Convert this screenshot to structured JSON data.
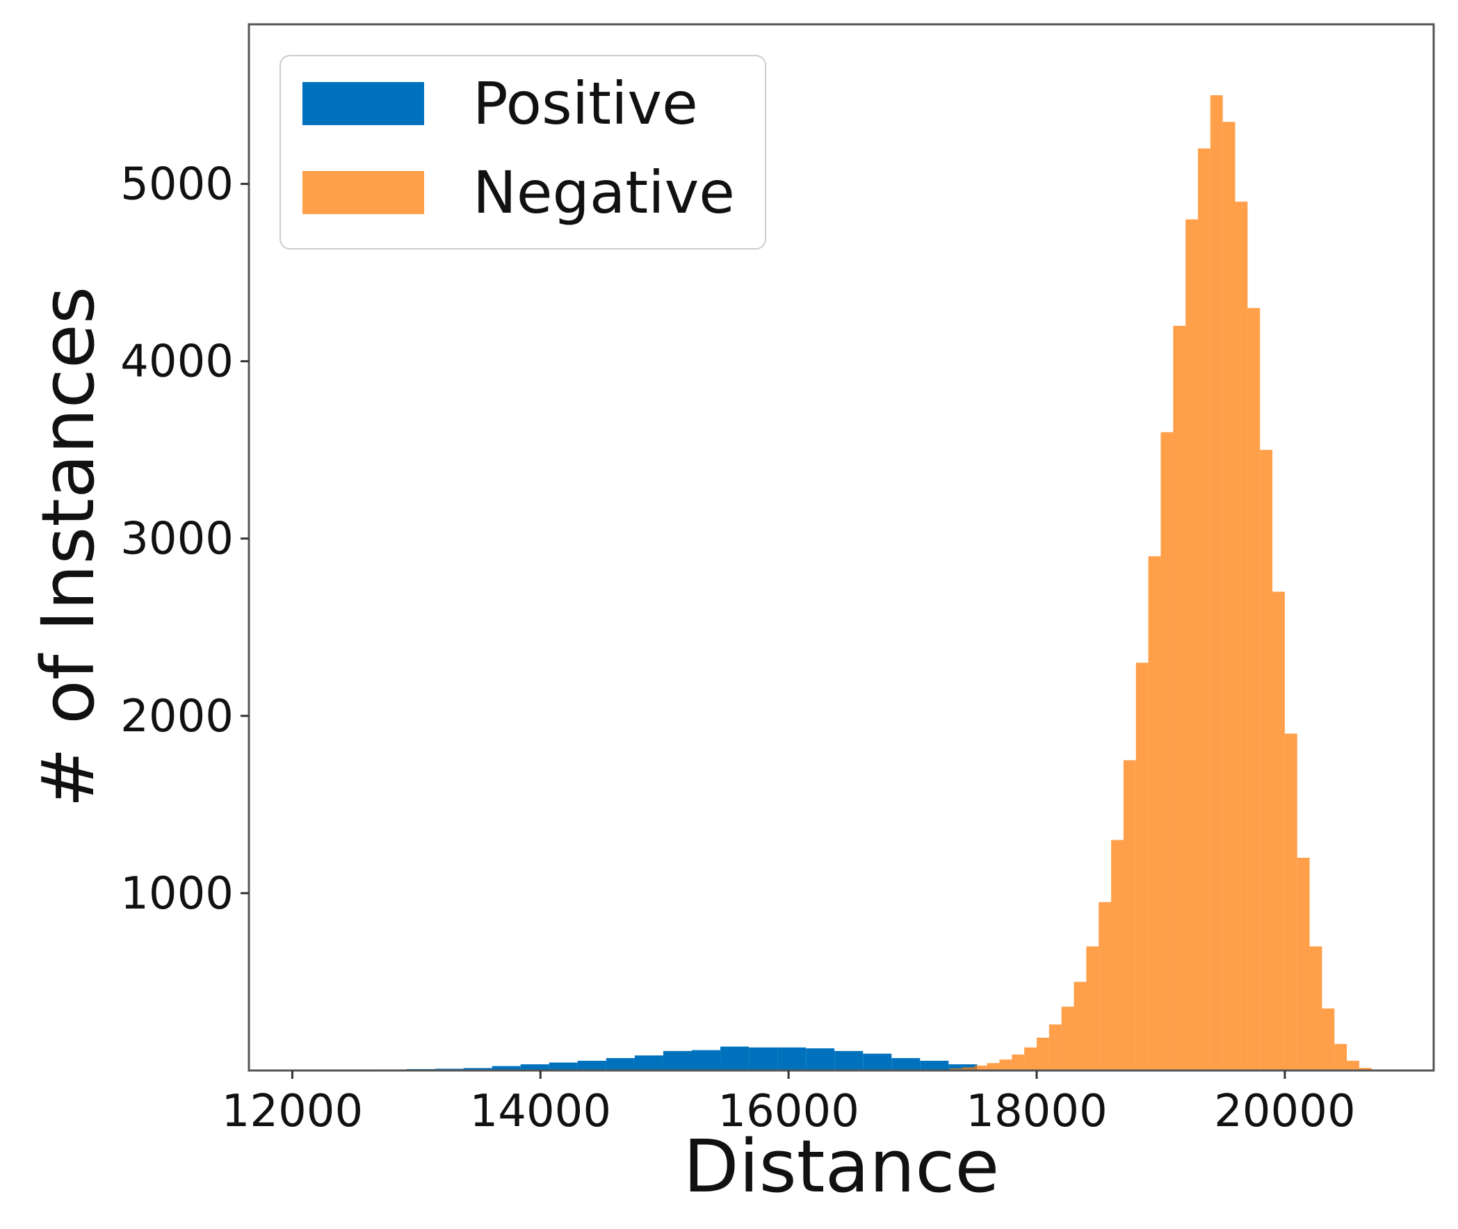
{
  "chart_data": {
    "type": "bar",
    "subtype": "histogram",
    "title": "",
    "xlabel": "Distance",
    "ylabel": "# of Instances",
    "xlim": [
      11650,
      21200
    ],
    "ylim": [
      0,
      5900
    ],
    "xticks": [
      12000,
      14000,
      16000,
      18000,
      20000
    ],
    "xtick_labels": [
      "12000",
      "14000",
      "16000",
      "18000",
      "20000"
    ],
    "yticks": [
      1000,
      2000,
      3000,
      4000,
      5000
    ],
    "ytick_labels": [
      "1000",
      "2000",
      "3000",
      "4000",
      "5000"
    ],
    "grid": false,
    "legend_position": "top-left",
    "series": [
      {
        "name": "Positive",
        "color": "#0072bd",
        "bins": [
          {
            "x0": 12000,
            "x1": 12230,
            "y": 3
          },
          {
            "x0": 12230,
            "x1": 12460,
            "y": 4
          },
          {
            "x0": 12460,
            "x1": 12690,
            "y": 5
          },
          {
            "x0": 12690,
            "x1": 12920,
            "y": 6
          },
          {
            "x0": 12920,
            "x1": 13150,
            "y": 8
          },
          {
            "x0": 13150,
            "x1": 13380,
            "y": 10
          },
          {
            "x0": 13380,
            "x1": 13610,
            "y": 14
          },
          {
            "x0": 13610,
            "x1": 13840,
            "y": 25
          },
          {
            "x0": 13840,
            "x1": 14070,
            "y": 35
          },
          {
            "x0": 14070,
            "x1": 14300,
            "y": 45
          },
          {
            "x0": 14300,
            "x1": 14530,
            "y": 55
          },
          {
            "x0": 14530,
            "x1": 14760,
            "y": 70
          },
          {
            "x0": 14760,
            "x1": 14990,
            "y": 85
          },
          {
            "x0": 14990,
            "x1": 15220,
            "y": 110
          },
          {
            "x0": 15220,
            "x1": 15450,
            "y": 115
          },
          {
            "x0": 15450,
            "x1": 15680,
            "y": 135
          },
          {
            "x0": 15680,
            "x1": 15910,
            "y": 130
          },
          {
            "x0": 15910,
            "x1": 16140,
            "y": 130
          },
          {
            "x0": 16140,
            "x1": 16370,
            "y": 125
          },
          {
            "x0": 16370,
            "x1": 16600,
            "y": 110
          },
          {
            "x0": 16600,
            "x1": 16830,
            "y": 95
          },
          {
            "x0": 16830,
            "x1": 17060,
            "y": 70
          },
          {
            "x0": 17060,
            "x1": 17290,
            "y": 55
          },
          {
            "x0": 17290,
            "x1": 17520,
            "y": 35
          }
        ]
      },
      {
        "name": "Negative",
        "color": "#ff7f0e",
        "alpha": 0.75,
        "bins": [
          {
            "x0": 17300,
            "x1": 17400,
            "y": 12
          },
          {
            "x0": 17400,
            "x1": 17500,
            "y": 18
          },
          {
            "x0": 17500,
            "x1": 17600,
            "y": 28
          },
          {
            "x0": 17600,
            "x1": 17700,
            "y": 42
          },
          {
            "x0": 17700,
            "x1": 17800,
            "y": 62
          },
          {
            "x0": 17800,
            "x1": 17900,
            "y": 90
          },
          {
            "x0": 17900,
            "x1": 18000,
            "y": 130
          },
          {
            "x0": 18000,
            "x1": 18100,
            "y": 185
          },
          {
            "x0": 18100,
            "x1": 18200,
            "y": 260
          },
          {
            "x0": 18200,
            "x1": 18300,
            "y": 360
          },
          {
            "x0": 18300,
            "x1": 18400,
            "y": 500
          },
          {
            "x0": 18400,
            "x1": 18500,
            "y": 700
          },
          {
            "x0": 18500,
            "x1": 18600,
            "y": 950
          },
          {
            "x0": 18600,
            "x1": 18700,
            "y": 1300
          },
          {
            "x0": 18700,
            "x1": 18800,
            "y": 1750
          },
          {
            "x0": 18800,
            "x1": 18900,
            "y": 2300
          },
          {
            "x0": 18900,
            "x1": 19000,
            "y": 2900
          },
          {
            "x0": 19000,
            "x1": 19100,
            "y": 3600
          },
          {
            "x0": 19100,
            "x1": 19200,
            "y": 4200
          },
          {
            "x0": 19200,
            "x1": 19300,
            "y": 4800
          },
          {
            "x0": 19300,
            "x1": 19400,
            "y": 5200
          },
          {
            "x0": 19400,
            "x1": 19500,
            "y": 5500
          },
          {
            "x0": 19500,
            "x1": 19600,
            "y": 5350
          },
          {
            "x0": 19600,
            "x1": 19700,
            "y": 4900
          },
          {
            "x0": 19700,
            "x1": 19800,
            "y": 4300
          },
          {
            "x0": 19800,
            "x1": 19900,
            "y": 3500
          },
          {
            "x0": 19900,
            "x1": 20000,
            "y": 2700
          },
          {
            "x0": 20000,
            "x1": 20100,
            "y": 1900
          },
          {
            "x0": 20100,
            "x1": 20200,
            "y": 1200
          },
          {
            "x0": 20200,
            "x1": 20300,
            "y": 700
          },
          {
            "x0": 20300,
            "x1": 20400,
            "y": 350
          },
          {
            "x0": 20400,
            "x1": 20500,
            "y": 150
          },
          {
            "x0": 20500,
            "x1": 20600,
            "y": 55
          },
          {
            "x0": 20600,
            "x1": 20700,
            "y": 15
          }
        ]
      }
    ]
  }
}
